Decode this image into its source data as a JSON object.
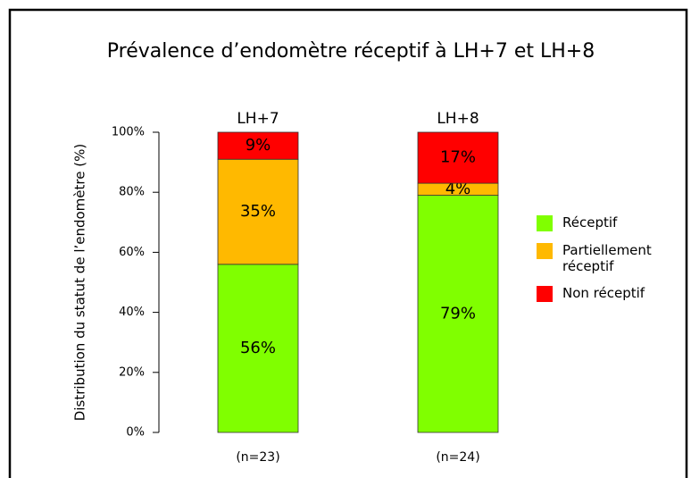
{
  "chart_data": {
    "type": "stacked_bar",
    "title": "Prévalence d’endomètre réceptif à LH+7 et LH+8",
    "y_label": "Distribution du statut de l’endomètre (%)",
    "categories": [
      "LH+7",
      "LH+8"
    ],
    "sample_sizes": [
      "(n=23)",
      "(n=24)"
    ],
    "series": [
      {
        "name": "Réceptif",
        "color": "#80ff00",
        "values": [
          56,
          79
        ],
        "value_labels": [
          "56%",
          "79%"
        ]
      },
      {
        "name": "Partiellement réceptif",
        "color": "#ffb900",
        "values": [
          35,
          4
        ],
        "value_labels": [
          "35%",
          "4%"
        ]
      },
      {
        "name": "Non réceptif",
        "color": "#ff0000",
        "values": [
          9,
          17
        ],
        "value_labels": [
          "9%",
          "17%"
        ]
      }
    ],
    "ylim": [
      0,
      100
    ],
    "yticks": [
      {
        "value": 0,
        "label": "0%"
      },
      {
        "value": 20,
        "label": "20%"
      },
      {
        "value": 40,
        "label": "40%"
      },
      {
        "value": 60,
        "label": "60%"
      },
      {
        "value": 80,
        "label": "80%"
      },
      {
        "value": 100,
        "label": "100%"
      }
    ]
  }
}
